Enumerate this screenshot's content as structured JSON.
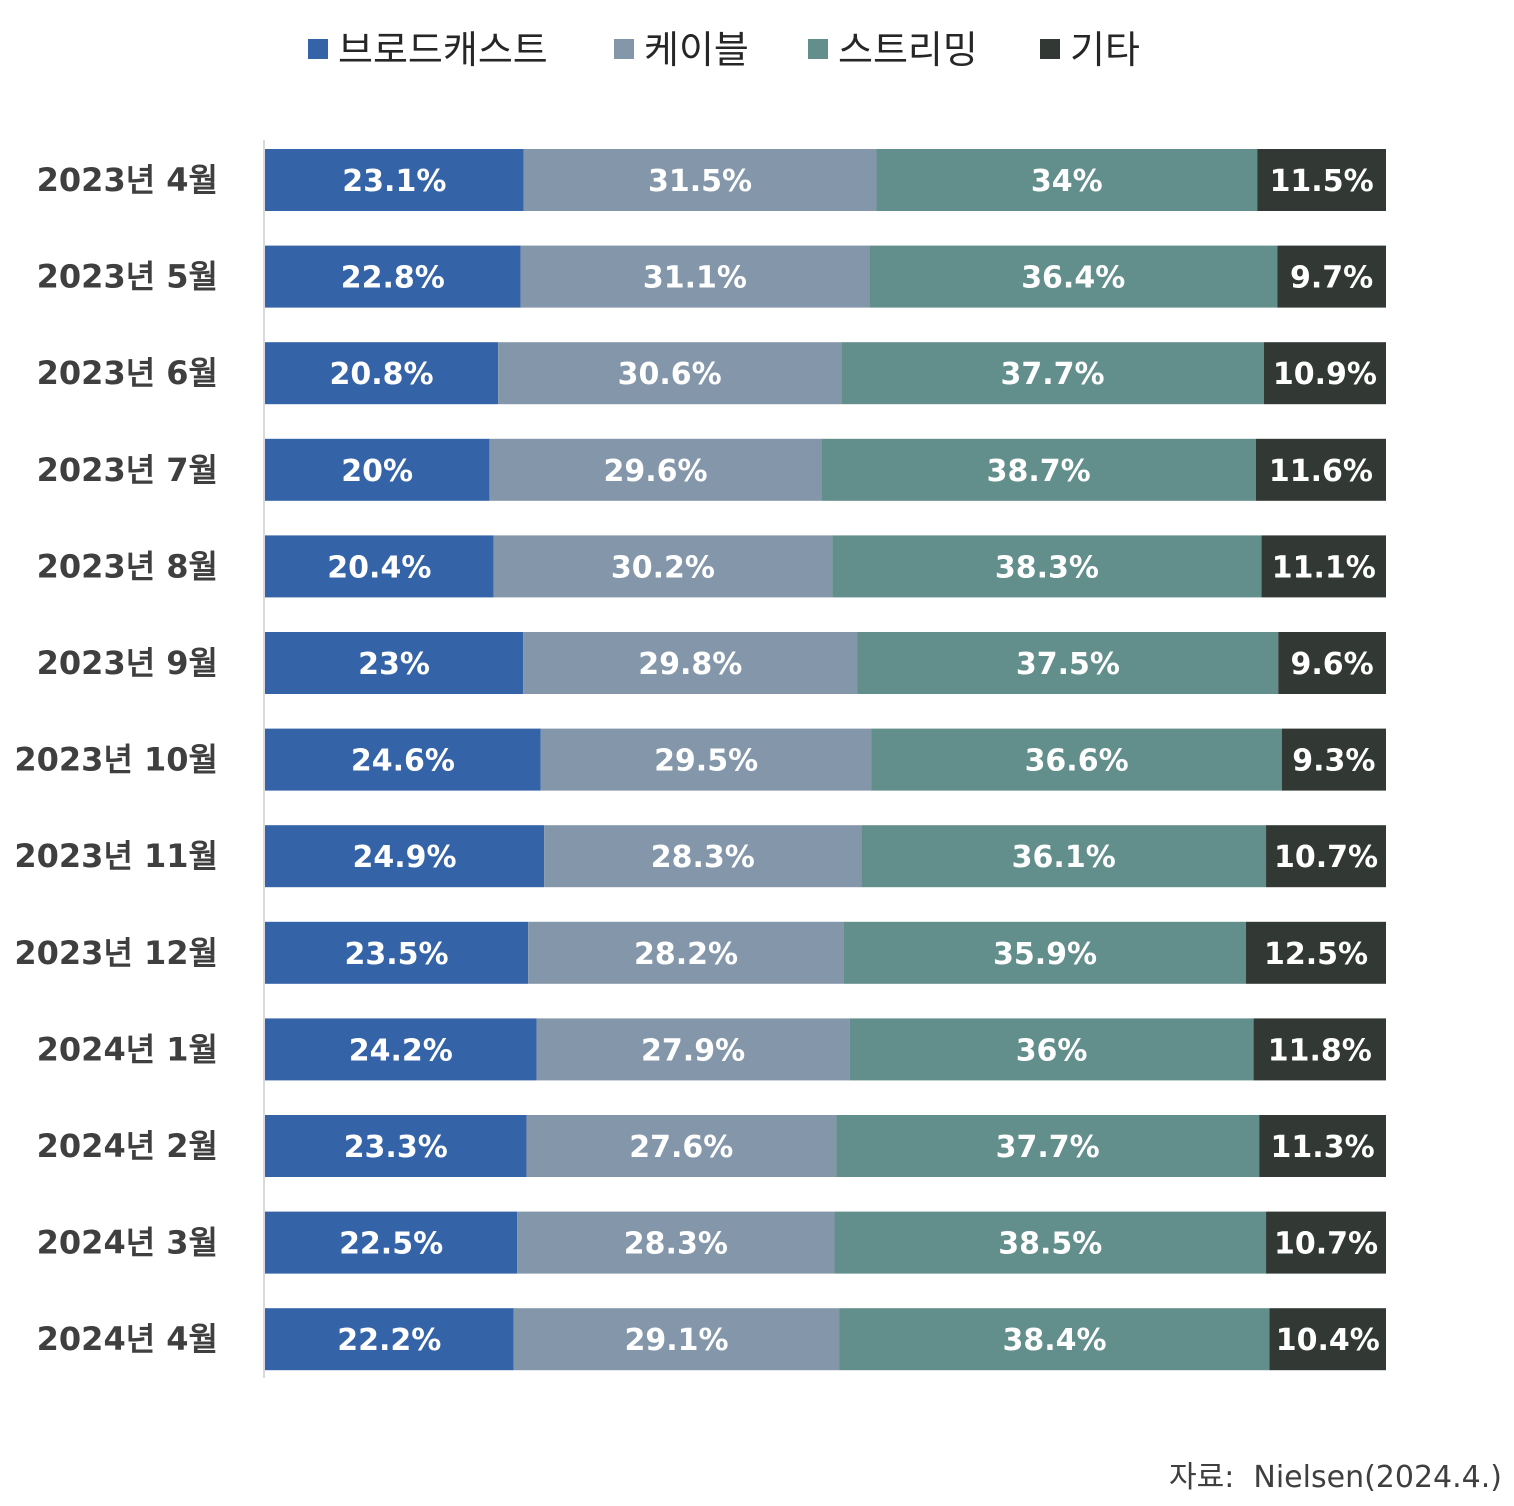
{
  "chart_data": {
    "type": "bar",
    "orientation": "horizontal",
    "stacked": true,
    "stack_mode": "percent",
    "title": "",
    "xlabel": "",
    "ylabel": "",
    "categories": [
      "2023년 4월",
      "2023년 5월",
      "2023년 6월",
      "2023년 7월",
      "2023년 8월",
      "2023년 9월",
      "2023년 10월",
      "2023년 11월",
      "2023년 12월",
      "2024년 1월",
      "2024년 2월",
      "2024년 3월",
      "2024년 4월"
    ],
    "series": [
      {
        "name": "브로드캐스트",
        "color": "#3563a8",
        "values": [
          23.1,
          22.8,
          20.8,
          20,
          20.4,
          23,
          24.6,
          24.9,
          23.5,
          24.2,
          23.3,
          22.5,
          22.2
        ]
      },
      {
        "name": "케이블",
        "color": "#8496aa",
        "values": [
          31.5,
          31.1,
          30.6,
          29.6,
          30.2,
          29.8,
          29.5,
          28.3,
          28.2,
          27.9,
          27.6,
          28.3,
          29.1
        ]
      },
      {
        "name": "스트리밍",
        "color": "#628e8c",
        "values": [
          34,
          36.4,
          37.7,
          38.7,
          38.3,
          37.5,
          36.6,
          36.1,
          35.9,
          36,
          37.7,
          38.5,
          38.4
        ]
      },
      {
        "name": "기타",
        "color": "#323834",
        "values": [
          11.5,
          9.7,
          10.9,
          11.6,
          11.1,
          9.6,
          9.3,
          10.7,
          12.5,
          11.8,
          11.3,
          10.7,
          10.4
        ]
      }
    ],
    "data_labels": true,
    "label_suffix": "%",
    "legend_position": "top",
    "grid": false
  },
  "source_note": "자료:  Nielsen(2024.4.)"
}
